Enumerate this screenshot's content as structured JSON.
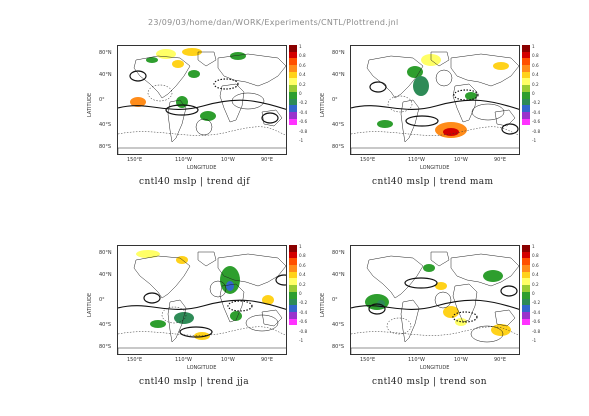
{
  "header": {
    "path": "23/09/03/home/dan/WORK/Experiments/CNTL/Plottrend.jnl"
  },
  "axes": {
    "ylabel": "LATITUDE",
    "xlabel": "LONGITUDE",
    "yticks": [
      "80°N",
      "40°N",
      "0°",
      "40°S",
      "80°S"
    ],
    "xticks": [
      "150°E",
      "110°W",
      "10°W",
      "90°E"
    ]
  },
  "colorbar": {
    "ticks": [
      "1",
      "0.8",
      "0.6",
      "0.4",
      "0.2",
      "0",
      "-0.2",
      "-0.4",
      "-0.6",
      "-0.8",
      "-1"
    ],
    "colors": [
      "#8b0000",
      "#d40000",
      "#ff5000",
      "#ff8c1a",
      "#ffd21a",
      "#ffff66",
      "#99cc33",
      "#2e9e2e",
      "#2e8b57",
      "#3366cc",
      "#9933cc",
      "#ff33ff"
    ]
  },
  "chart_data": [
    {
      "type": "heatmap",
      "title": "cntl40  mslp  |  trend  djf",
      "xlabel": "LONGITUDE",
      "ylabel": "LATITUDE",
      "value_range": [
        -1,
        1
      ]
    },
    {
      "type": "heatmap",
      "title": "cntl40  mslp  |  trend  mam",
      "xlabel": "LONGITUDE",
      "ylabel": "LATITUDE",
      "value_range": [
        -1,
        1
      ]
    },
    {
      "type": "heatmap",
      "title": "cntl40  mslp  |  trend  jja",
      "xlabel": "LONGITUDE",
      "ylabel": "LATITUDE",
      "value_range": [
        -1,
        1
      ]
    },
    {
      "type": "heatmap",
      "title": "cntl40  mslp  |  trend  son",
      "xlabel": "LONGITUDE",
      "ylabel": "LATITUDE",
      "value_range": [
        -1,
        1
      ]
    }
  ]
}
